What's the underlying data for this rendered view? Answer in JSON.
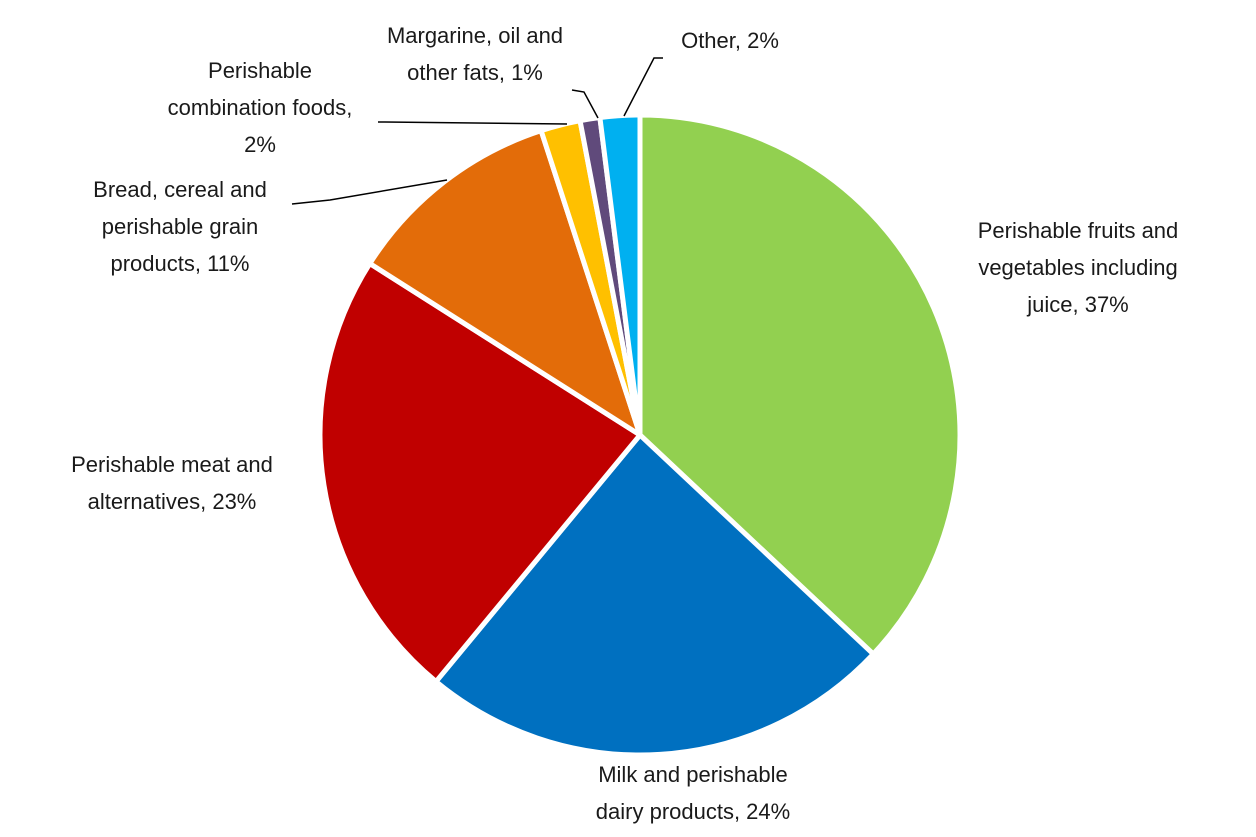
{
  "chart_data": {
    "type": "pie",
    "title": "",
    "start_angle_deg": 0,
    "direction": "clockwise",
    "slices": [
      {
        "label": "Perishable fruits and vegetables including juice",
        "value": 37,
        "display": "Perishable fruits and vegetables including juice, 37%",
        "color": "#92d050"
      },
      {
        "label": "Milk and perishable dairy products",
        "value": 24,
        "display": "Milk and perishable dairy products, 24%",
        "color": "#0070c0"
      },
      {
        "label": "Perishable meat and alternatives",
        "value": 23,
        "display": "Perishable meat and alternatives, 23%",
        "color": "#c00000"
      },
      {
        "label": "Bread, cereal and perishable grain products",
        "value": 11,
        "display": "Bread, cereal and perishable grain products, 11%",
        "color": "#e36c09"
      },
      {
        "label": "Perishable combination foods",
        "value": 2,
        "display": "Perishable combination foods, 2%",
        "color": "#ffc000"
      },
      {
        "label": "Margarine, oil and other fats",
        "value": 1,
        "display": "Margarine, oil and other fats, 1%",
        "color": "#604a7b"
      },
      {
        "label": "Other",
        "value": 2,
        "display": "Other, 2%",
        "color": "#00b0f0"
      }
    ]
  }
}
